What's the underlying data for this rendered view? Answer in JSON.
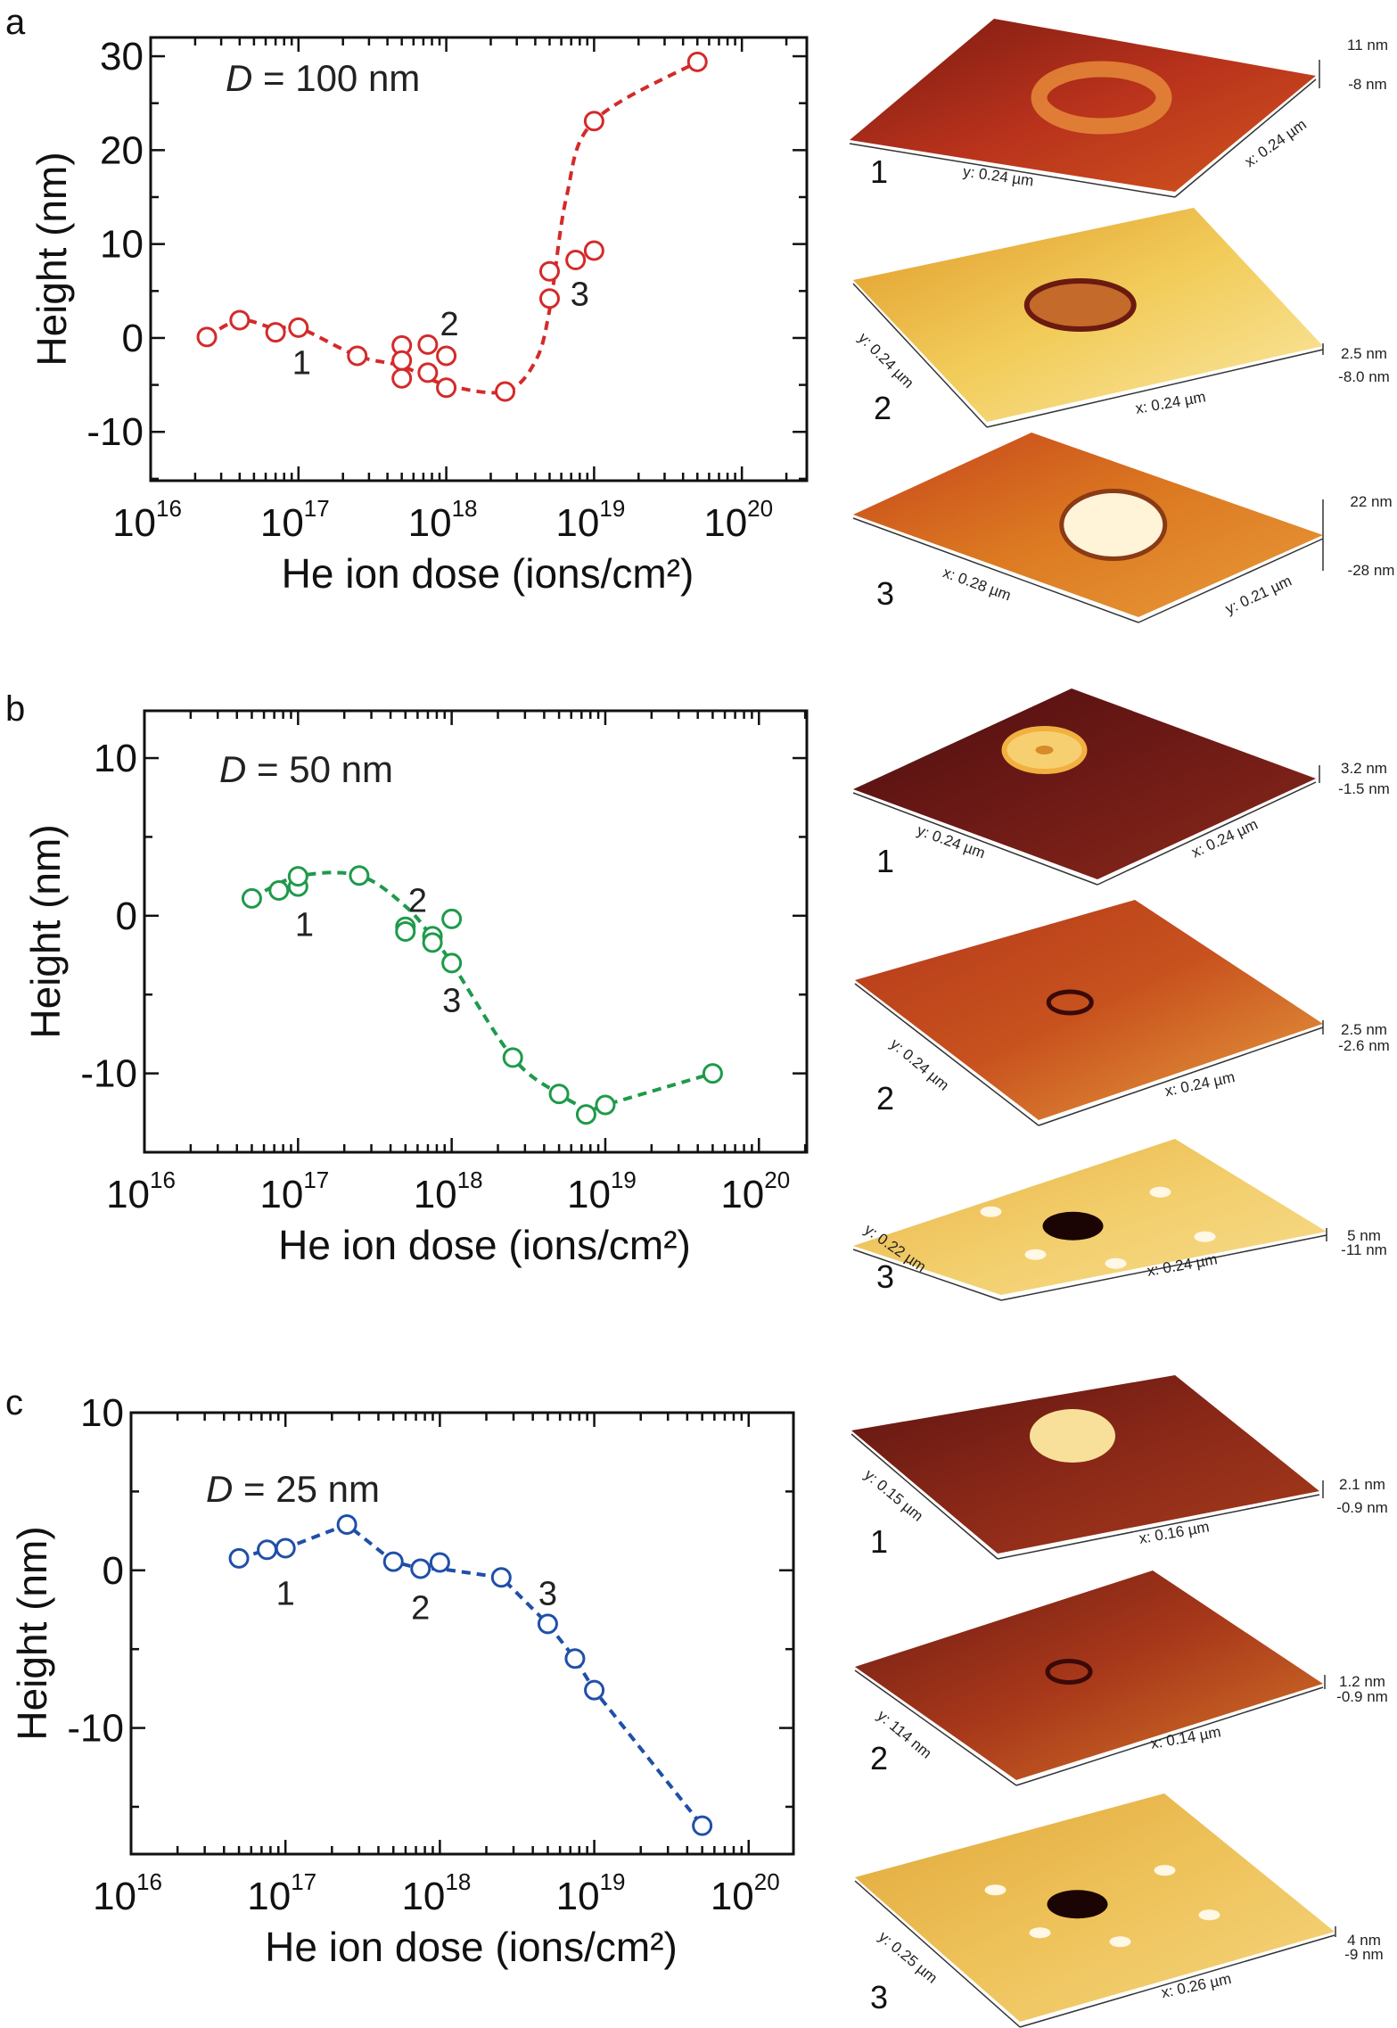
{
  "chart_data": [
    {
      "panel": "a",
      "type": "scatter",
      "color": "#d42a2a",
      "annotation": {
        "symbol": "D",
        "text": " = 100 nm"
      },
      "xlabel": "He ion dose (ions/cm²)",
      "ylabel": "Height (nm)",
      "xscale": "log",
      "xlim": [
        1e+16,
        2.75e+20
      ],
      "ylim": [
        -15.2,
        32
      ],
      "xticks": [
        {
          "m": "10",
          "e": "16",
          "v": 1e+16
        },
        {
          "m": "10",
          "e": "17",
          "v": 1e+17
        },
        {
          "m": "10",
          "e": "18",
          "v": 1e+18
        },
        {
          "m": "10",
          "e": "19",
          "v": 1e+19
        },
        {
          "m": "10",
          "e": "20",
          "v": 1e+20
        }
      ],
      "yticks": [
        {
          "label": "30",
          "v": 30
        },
        {
          "label": "20",
          "v": 20
        },
        {
          "label": "10",
          "v": 10
        },
        {
          "label": "0",
          "v": 0
        },
        {
          "label": "-10",
          "v": -10
        }
      ],
      "points": [
        [
          2.4e+16,
          0.1
        ],
        [
          4e+16,
          1.9
        ],
        [
          7e+16,
          0.6
        ],
        [
          1e+17,
          1.1
        ],
        [
          2.5e+17,
          -1.9
        ],
        [
          5e+17,
          -0.8
        ],
        [
          5e+17,
          -2.4
        ],
        [
          5e+17,
          -4.3
        ],
        [
          7.5e+17,
          -0.7
        ],
        [
          7.5e+17,
          -3.7
        ],
        [
          1e+18,
          -1.9
        ],
        [
          1e+18,
          -5.3
        ],
        [
          2.5e+18,
          -5.7
        ],
        [
          5e+18,
          7.1
        ],
        [
          5e+18,
          4.2
        ],
        [
          7.5e+18,
          8.3
        ],
        [
          1e+19,
          9.3
        ],
        [
          1e+19,
          23.1
        ],
        [
          5e+19,
          29.4
        ]
      ],
      "trend": [
        [
          2.4e+16,
          0.1
        ],
        [
          4e+16,
          1.9
        ],
        [
          7e+16,
          1.0
        ],
        [
          1e+17,
          1.1
        ],
        [
          2.5e+17,
          -1.9
        ],
        [
          5e+17,
          -3.0
        ],
        [
          1e+18,
          -5.0
        ],
        [
          2.5e+18,
          -5.7
        ],
        [
          4e+18,
          -2.5
        ],
        [
          5e+18,
          3
        ],
        [
          6.5e+18,
          15
        ],
        [
          1e+19,
          23.1
        ],
        [
          5e+19,
          29.4
        ]
      ],
      "point_labels": [
        {
          "text": "1",
          "x": 1.05e+17,
          "y": -2.5
        },
        {
          "text": "2",
          "x": 1.05e+18,
          "y": 1.6
        },
        {
          "text": "3",
          "x": 8e+18,
          "y": 4.8
        }
      ]
    },
    {
      "panel": "b",
      "type": "scatter",
      "color": "#1e9a4a",
      "annotation": {
        "symbol": "D",
        "text": " = 50 nm"
      },
      "xlabel": "He ion dose (ions/cm²)",
      "ylabel": "Height (nm)",
      "xscale": "log",
      "xlim": [
        1e+16,
        2.05e+20
      ],
      "ylim": [
        -15,
        13
      ],
      "xticks": [
        {
          "m": "10",
          "e": "16",
          "v": 1e+16
        },
        {
          "m": "10",
          "e": "17",
          "v": 1e+17
        },
        {
          "m": "10",
          "e": "18",
          "v": 1e+18
        },
        {
          "m": "10",
          "e": "19",
          "v": 1e+19
        },
        {
          "m": "10",
          "e": "20",
          "v": 1e+20
        }
      ],
      "yticks": [
        {
          "label": "10",
          "v": 10
        },
        {
          "label": "0",
          "v": 0
        },
        {
          "label": "-10",
          "v": -10
        }
      ],
      "points": [
        [
          5e+16,
          1.1
        ],
        [
          7.5e+16,
          1.6
        ],
        [
          1e+17,
          1.85
        ],
        [
          1e+17,
          2.5
        ],
        [
          2.5e+17,
          2.55
        ],
        [
          5e+17,
          -0.7
        ],
        [
          5e+17,
          -1.0
        ],
        [
          7.5e+17,
          -1.3
        ],
        [
          7.5e+17,
          -1.7
        ],
        [
          1e+18,
          -0.2
        ],
        [
          1e+18,
          -3.0
        ],
        [
          2.5e+18,
          -9.0
        ],
        [
          5e+18,
          -11.3
        ],
        [
          7.5e+18,
          -12.6
        ],
        [
          1e+19,
          -12.0
        ],
        [
          5e+19,
          -10.0
        ]
      ],
      "trend": [
        [
          5e+16,
          1.1
        ],
        [
          1e+17,
          2.5
        ],
        [
          2.5e+17,
          2.55
        ],
        [
          5e+17,
          0.6
        ],
        [
          7.5e+17,
          -1.4
        ],
        [
          1e+18,
          -3.0
        ],
        [
          2.5e+18,
          -9.0
        ],
        [
          5e+18,
          -11.3
        ],
        [
          8e+18,
          -12.3
        ],
        [
          1e+19,
          -12.0
        ],
        [
          5e+19,
          -10.0
        ]
      ],
      "point_labels": [
        {
          "text": "1",
          "x": 1.1e+17,
          "y": -0.5
        },
        {
          "text": "2",
          "x": 6e+17,
          "y": 1.05
        },
        {
          "text": "3",
          "x": 1e+18,
          "y": -5.3
        }
      ]
    },
    {
      "panel": "c",
      "type": "scatter",
      "color": "#1f4fa8",
      "annotation": {
        "symbol": "D",
        "text": " = 25 nm"
      },
      "xlabel": "He ion dose (ions/cm²)",
      "ylabel": "Height (nm)",
      "xscale": "log",
      "xlim": [
        1e+16,
        1.95e+20
      ],
      "ylim": [
        -18,
        10
      ],
      "xticks": [
        {
          "m": "10",
          "e": "16",
          "v": 1e+16
        },
        {
          "m": "10",
          "e": "17",
          "v": 1e+17
        },
        {
          "m": "10",
          "e": "18",
          "v": 1e+18
        },
        {
          "m": "10",
          "e": "19",
          "v": 1e+19
        },
        {
          "m": "10",
          "e": "20",
          "v": 1e+20
        }
      ],
      "yticks": [
        {
          "label": "10",
          "v": 10
        },
        {
          "label": "0",
          "v": 0
        },
        {
          "label": "-10",
          "v": -10
        }
      ],
      "points": [
        [
          5e+16,
          0.76
        ],
        [
          7.6e+16,
          1.3
        ],
        [
          1e+17,
          1.4
        ],
        [
          2.5e+17,
          2.9
        ],
        [
          5e+17,
          0.55
        ],
        [
          7.5e+17,
          0.1
        ],
        [
          1e+18,
          0.5
        ],
        [
          2.5e+18,
          -0.45
        ],
        [
          5e+18,
          -3.4
        ],
        [
          7.5e+18,
          -5.6
        ],
        [
          1e+19,
          -7.6
        ],
        [
          5e+19,
          -16.2
        ]
      ],
      "trend": [
        [
          5e+16,
          0.76
        ],
        [
          7.6e+16,
          1.3
        ],
        [
          1e+17,
          1.4
        ],
        [
          2.5e+17,
          2.9
        ],
        [
          5e+17,
          0.55
        ],
        [
          7.5e+17,
          0.1
        ],
        [
          1e+18,
          0.1
        ],
        [
          2.5e+18,
          -0.45
        ],
        [
          5e+18,
          -3.4
        ],
        [
          7.5e+18,
          -5.6
        ],
        [
          1e+19,
          -7.6
        ],
        [
          5e+19,
          -16.2
        ]
      ],
      "point_labels": [
        {
          "text": "1",
          "x": 1e+17,
          "y": -1.4
        },
        {
          "text": "2",
          "x": 7.5e+17,
          "y": -2.3
        },
        {
          "text": "3",
          "x": 5e+18,
          "y": -1.4
        }
      ]
    }
  ],
  "afm_panels": [
    [
      {
        "number": "1",
        "y_label": "y: 0.24 µm",
        "x_label": "x: 0.24 µm",
        "z_max": "11 nm",
        "z_min": "-8 nm",
        "palette": [
          "#7a1a12",
          "#b8321c",
          "#d2561e"
        ],
        "feature": "ring"
      },
      {
        "number": "2",
        "y_label": "y: 0.24 µm",
        "x_label": "x: 0.24 µm",
        "z_max": "2.5 nm",
        "z_min": "-8.0 nm",
        "palette": [
          "#e09a2a",
          "#f2cc5a",
          "#fbe9a8"
        ],
        "feature": "pit-rim"
      },
      {
        "number": "3",
        "y_label": "x: 0.28 µm",
        "x_label": "y: 0.21 µm",
        "z_max": "22 nm",
        "z_min": "-28 nm",
        "palette": [
          "#c5441a",
          "#dc7a22",
          "#e99a3a"
        ],
        "feature": "dome"
      }
    ],
    [
      {
        "number": "1",
        "y_label": "y: 0.24 µm",
        "x_label": "x: 0.24 µm",
        "z_max": "3.2 nm",
        "z_min": "-1.5 nm",
        "palette": [
          "#4e0f10",
          "#6e1a16",
          "#8a2a1a"
        ],
        "feature": "bright-ring"
      },
      {
        "number": "2",
        "y_label": "y: 0.24 µm",
        "x_label": "x: 0.24 µm",
        "z_max": "2.5 nm",
        "z_min": "-2.6 nm",
        "palette": [
          "#b3381a",
          "#c8521e",
          "#e8a040"
        ],
        "feature": "small-pit"
      },
      {
        "number": "3",
        "y_label": "y: 0.22 µm",
        "x_label": "x: 0.24 µm",
        "z_max": "5 nm",
        "z_min": "-11 nm",
        "palette": [
          "#e7b246",
          "#f2cd6a",
          "#f7dd8e"
        ],
        "feature": "dark-hole"
      }
    ],
    [
      {
        "number": "1",
        "y_label": "y: 0.15 µm",
        "x_label": "x: 0.16 µm",
        "z_max": "2.1 nm",
        "z_min": "-0.9 nm",
        "palette": [
          "#5e1412",
          "#8a2818",
          "#a83c1c"
        ],
        "feature": "bright-dot"
      },
      {
        "number": "2",
        "y_label": "y: 114 nm",
        "x_label": "x: 0.14 µm",
        "z_max": "1.2 nm",
        "z_min": "-0.9 nm",
        "palette": [
          "#6a1a14",
          "#a8381a",
          "#d87a2a"
        ],
        "feature": "small-pit"
      },
      {
        "number": "3",
        "y_label": "y: 0.25 µm",
        "x_label": "x: 0.26 µm",
        "z_max": "4 nm",
        "z_min": "-9 nm",
        "palette": [
          "#e0a83a",
          "#eec25a",
          "#f5d67e"
        ],
        "feature": "dark-hole"
      }
    ]
  ]
}
